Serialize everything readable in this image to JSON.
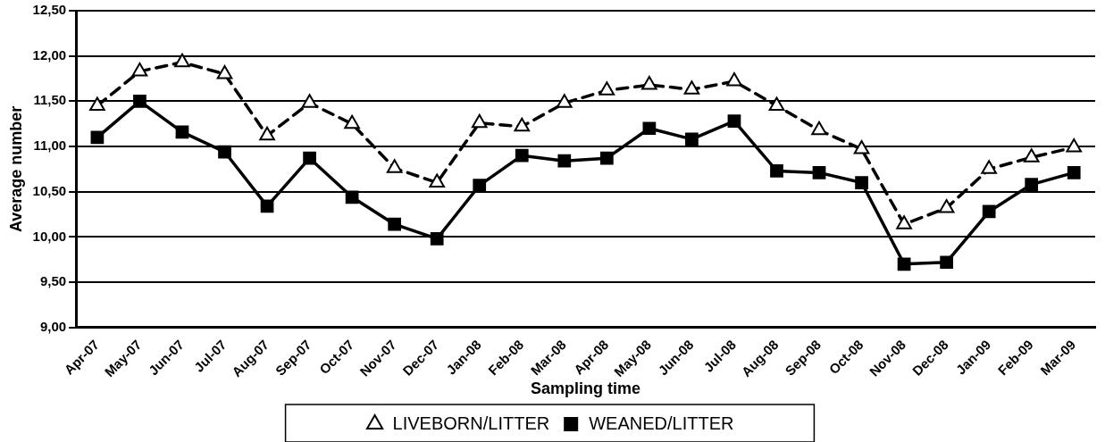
{
  "chart_data": {
    "type": "line",
    "xlabel": "Sampling time",
    "ylabel": "Average number",
    "categories": [
      "Apr-07",
      "May-07",
      "Jun-07",
      "Jul-07",
      "Aug-07",
      "Sep-07",
      "Oct-07",
      "Nov-07",
      "Dec-07",
      "Jan-08",
      "Feb-08",
      "Mar-08",
      "Apr-08",
      "May-08",
      "Jun-08",
      "Jul-08",
      "Aug-08",
      "Sep-08",
      "Oct-08",
      "Nov-08",
      "Dec-08",
      "Jan-09",
      "Feb-09",
      "Mar-09"
    ],
    "series": [
      {
        "name": "LIVEBORN/LITTER",
        "color": "#000000",
        "marker": "triangle",
        "line_style": "dashed",
        "values": [
          11.45,
          11.83,
          11.93,
          11.8,
          11.12,
          11.48,
          11.25,
          10.76,
          10.6,
          11.26,
          11.22,
          11.48,
          11.62,
          11.68,
          11.63,
          11.72,
          11.45,
          11.18,
          10.97,
          10.14,
          10.32,
          10.75,
          10.88,
          10.99
        ]
      },
      {
        "name": "WEANED/LITTER",
        "color": "#000000",
        "marker": "square",
        "line_style": "solid",
        "values": [
          11.1,
          11.5,
          11.16,
          10.94,
          10.34,
          10.87,
          10.44,
          10.14,
          9.98,
          10.57,
          10.9,
          10.84,
          10.87,
          11.2,
          11.08,
          11.28,
          10.73,
          10.71,
          10.6,
          9.7,
          9.72,
          10.28,
          10.58,
          10.71
        ]
      }
    ],
    "ylim": [
      9,
      12.5
    ],
    "yticks": [
      {
        "value": 9,
        "label": "9,00"
      },
      {
        "value": 9.5,
        "label": "9,50"
      },
      {
        "value": 10,
        "label": "10,00"
      },
      {
        "value": 10.5,
        "label": "10,50"
      },
      {
        "value": 11,
        "label": "11,00"
      },
      {
        "value": 11.5,
        "label": "11,50"
      },
      {
        "value": 12,
        "label": "12,00"
      },
      {
        "value": 12.5,
        "label": "12,50"
      }
    ],
    "grid": "y",
    "legend": "bottom"
  }
}
